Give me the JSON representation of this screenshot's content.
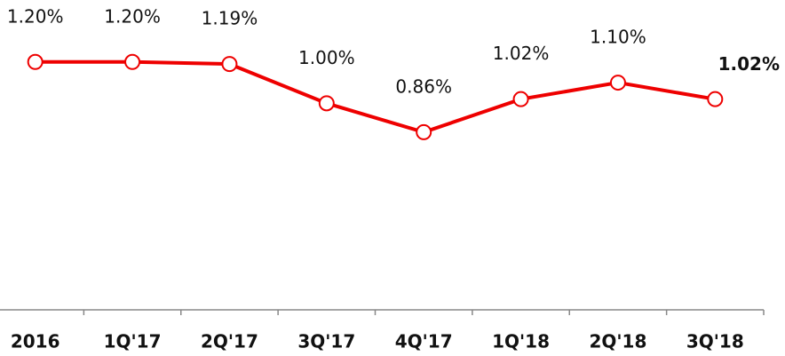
{
  "chart_data": {
    "type": "line",
    "categories": [
      "2016",
      "1Q'17",
      "2Q'17",
      "3Q'17",
      "4Q'17",
      "1Q'18",
      "2Q'18",
      "3Q'18"
    ],
    "series": [
      {
        "color": "#ee0000",
        "values": [
          1.2,
          1.2,
          1.19,
          1.0,
          0.86,
          1.02,
          1.1,
          1.02
        ],
        "value_labels": [
          "1.20%",
          "1.20%",
          "1.19%",
          "1.00%",
          "0.86%",
          "1.02%",
          "1.10%",
          "1.02%"
        ]
      }
    ],
    "ylim": [
      0,
      1.5
    ]
  }
}
